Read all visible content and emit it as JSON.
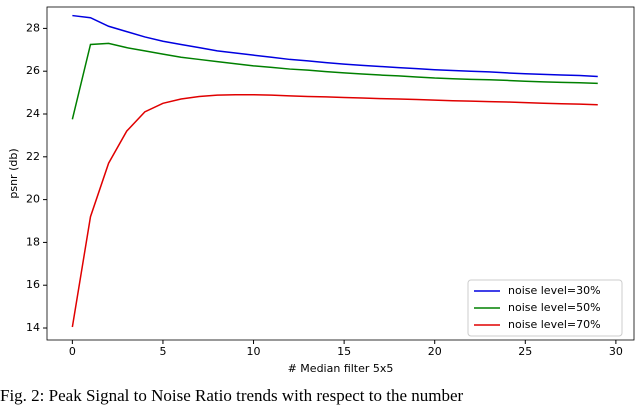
{
  "chart_data": {
    "type": "line",
    "x_label": "# Median filter 5x5",
    "y_label": "psnr (db)",
    "caption": "Fig. 2: Peak Signal to Noise Ratio trends with respect to the number",
    "x": [
      0,
      1,
      2,
      3,
      4,
      5,
      6,
      7,
      8,
      9,
      10,
      11,
      12,
      13,
      14,
      15,
      16,
      17,
      18,
      19,
      20,
      21,
      22,
      23,
      24,
      25,
      26,
      27,
      28,
      29
    ],
    "series": [
      {
        "name": "noise level=30%",
        "color": "#0000e0",
        "values": [
          28.6,
          28.5,
          28.1,
          27.85,
          27.6,
          27.4,
          27.25,
          27.1,
          26.95,
          26.85,
          26.75,
          26.65,
          26.55,
          26.48,
          26.4,
          26.33,
          26.27,
          26.22,
          26.17,
          26.12,
          26.07,
          26.03,
          26.0,
          25.97,
          25.92,
          25.88,
          25.85,
          25.82,
          25.8,
          25.75
        ]
      },
      {
        "name": "noise level=50%",
        "color": "#008000",
        "values": [
          23.75,
          27.25,
          27.3,
          27.1,
          26.95,
          26.8,
          26.65,
          26.55,
          26.45,
          26.35,
          26.25,
          26.18,
          26.1,
          26.05,
          25.98,
          25.92,
          25.87,
          25.82,
          25.78,
          25.73,
          25.68,
          25.65,
          25.62,
          25.6,
          25.57,
          25.53,
          25.5,
          25.48,
          25.46,
          25.43
        ]
      },
      {
        "name": "noise level=70%",
        "color": "#e00000",
        "values": [
          14.05,
          19.2,
          21.7,
          23.2,
          24.1,
          24.5,
          24.7,
          24.82,
          24.88,
          24.9,
          24.9,
          24.88,
          24.85,
          24.82,
          24.8,
          24.77,
          24.75,
          24.72,
          24.7,
          24.68,
          24.65,
          24.62,
          24.6,
          24.58,
          24.56,
          24.53,
          24.5,
          24.48,
          24.46,
          24.43
        ]
      }
    ],
    "xlim": [
      -1.4,
      31
    ],
    "ylim": [
      13.44,
      29
    ],
    "xticks": [
      0,
      5,
      10,
      15,
      20,
      25,
      30
    ],
    "yticks": [
      14,
      16,
      18,
      20,
      22,
      24,
      26,
      28
    ],
    "legend": "lower right",
    "grid": false
  }
}
